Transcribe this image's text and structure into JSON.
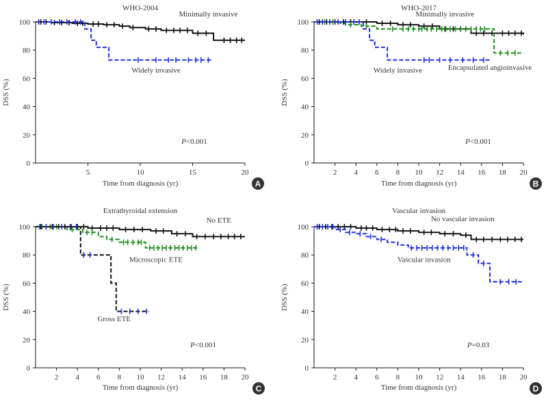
{
  "colors": {
    "black": "#111111",
    "blue": "#1f2fd8",
    "green": "#1e8c1e",
    "badge": "#333333",
    "axis": "#111111"
  },
  "chart_data": [
    {
      "id": "A",
      "type": "line",
      "subtype": "kaplan-meier",
      "title": "WHO-2004",
      "xlabel": "Time from diagnosis (yr)",
      "ylabel": "DSS (%)",
      "xlim": [
        0,
        20
      ],
      "ylim": [
        0,
        100
      ],
      "xticks": [
        5,
        10,
        15,
        20
      ],
      "yticks": [
        0,
        20,
        40,
        60,
        80,
        100
      ],
      "badge": "A",
      "pvalue": {
        "p": "P",
        "rest": "<0.001"
      },
      "series": [
        {
          "name": "Minimally invasive",
          "color": "black",
          "dash": "solid",
          "steps": [
            [
              0,
              100
            ],
            [
              1.5,
              99.5
            ],
            [
              3.5,
              99
            ],
            [
              5,
              98.5
            ],
            [
              6.5,
              98
            ],
            [
              8,
              97
            ],
            [
              9,
              96
            ],
            [
              10.5,
              95
            ],
            [
              12,
              94
            ],
            [
              15,
              92
            ],
            [
              17,
              87
            ],
            [
              20,
              87
            ]
          ],
          "censor": [
            0.5,
            1,
            1.8,
            2.5,
            3.2,
            4,
            4.5,
            5.5,
            6,
            6.8,
            7.5,
            8.3,
            9.3,
            10.8,
            11.5,
            12.5,
            13.2,
            13.8,
            14.5,
            15.5,
            16.3,
            18,
            18.6,
            19.2,
            19.7
          ]
        },
        {
          "name": "Widely invasive",
          "color": "blue",
          "dash": "dashed",
          "steps": [
            [
              0,
              100
            ],
            [
              4.7,
              95
            ],
            [
              5.3,
              87
            ],
            [
              5.8,
              82
            ],
            [
              7,
              73
            ],
            [
              16.8,
              73
            ]
          ],
          "censor": [
            0.3,
            0.8,
            1.5,
            2.3,
            3,
            3.8,
            4.3,
            9.8,
            11.5,
            12.7,
            13.4,
            14.6,
            15.3,
            15.8,
            16.5
          ]
        }
      ],
      "annotations": [
        {
          "text": "Minimally invasive",
          "x": 16.5,
          "y": 104
        },
        {
          "text": "Widely invasive",
          "x": 11.5,
          "y": 64
        }
      ]
    },
    {
      "id": "B",
      "type": "line",
      "subtype": "kaplan-meier",
      "title": "WHO-2017",
      "xlabel": "Time from diagnosis (yr)",
      "ylabel": "DSS (%)",
      "xlim": [
        0,
        20
      ],
      "ylim": [
        0,
        100
      ],
      "xticks": [
        2,
        4,
        6,
        8,
        10,
        12,
        14,
        16,
        18,
        20
      ],
      "yticks": [
        0,
        20,
        40,
        60,
        80,
        100
      ],
      "badge": "B",
      "pvalue": {
        "p": "P",
        "rest": "<0.001"
      },
      "series": [
        {
          "name": "Minimally invasive",
          "color": "black",
          "dash": "solid",
          "steps": [
            [
              0,
              100
            ],
            [
              6,
              99
            ],
            [
              8,
              98
            ],
            [
              10,
              97
            ],
            [
              12,
              95
            ],
            [
              15,
              92
            ],
            [
              20,
              91
            ]
          ],
          "censor": [
            0.5,
            1.2,
            2,
            2.8,
            3.5,
            4.3,
            5,
            6.5,
            7.3,
            8.5,
            9.2,
            10.5,
            11.3,
            12.5,
            13.3,
            14,
            15.5,
            16.2,
            17,
            18,
            18.6,
            19.2,
            19.8
          ]
        },
        {
          "name": "Encapsulated angioinvasive",
          "color": "green",
          "dash": "dashed",
          "steps": [
            [
              0,
              100
            ],
            [
              2.5,
              99
            ],
            [
              3,
              98
            ],
            [
              4.5,
              97
            ],
            [
              6,
              95
            ],
            [
              17.2,
              94
            ],
            [
              17.2,
              78
            ],
            [
              20,
              78
            ]
          ],
          "censor": [
            1,
            1.8,
            3.5,
            5,
            7.5,
            8.5,
            9,
            9.5,
            10,
            10.3,
            10.8,
            11.2,
            11.7,
            12.2,
            12.6,
            13,
            13.5,
            14,
            14.5,
            15,
            15.5,
            15.9,
            16.3,
            17.8,
            18.5,
            19.2
          ]
        },
        {
          "name": "Widely invasive",
          "color": "blue",
          "dash": "dashed",
          "steps": [
            [
              0,
              100
            ],
            [
              4.7,
              95
            ],
            [
              5.3,
              87
            ],
            [
              5.8,
              82
            ],
            [
              7,
              73
            ],
            [
              16.8,
              73
            ]
          ],
          "censor": [
            0.3,
            0.8,
            1.5,
            2.3,
            3,
            3.8,
            4.3,
            10.5,
            11,
            12,
            13,
            14.2,
            15.2,
            16.2
          ]
        }
      ],
      "annotations": [
        {
          "text": "Minimally invasive",
          "x": 12.5,
          "y": 104
        },
        {
          "text": "Widely invasive",
          "x": 8,
          "y": 64
        },
        {
          "text": "Encapsulated angioinvasive",
          "x": 16.8,
          "y": 66
        }
      ]
    },
    {
      "id": "C",
      "type": "line",
      "subtype": "kaplan-meier",
      "title": "Extrathyroidal extension",
      "xlabel": "Time from diagnosis (yr)",
      "ylabel": "DSS (%)",
      "xlim": [
        0,
        20
      ],
      "ylim": [
        0,
        100
      ],
      "xticks": [
        2,
        4,
        6,
        8,
        10,
        12,
        14,
        16,
        18,
        20
      ],
      "yticks": [
        0,
        20,
        40,
        60,
        80,
        100
      ],
      "badge": "C",
      "pvalue": {
        "p": "P",
        "rest": "<0.001"
      },
      "series": [
        {
          "name": "No ETE",
          "color": "black",
          "dash": "solid",
          "steps": [
            [
              0,
              100
            ],
            [
              5,
              99
            ],
            [
              8,
              98
            ],
            [
              11,
              97
            ],
            [
              13,
              95
            ],
            [
              15,
              93
            ],
            [
              20,
              93
            ]
          ],
          "censor": [
            0.5,
            1,
            1.6,
            2.2,
            2.8,
            3.4,
            4,
            4.6,
            5.4,
            6.2,
            6.8,
            7.4,
            8.6,
            9.4,
            10.2,
            11.5,
            12.2,
            13.5,
            14.3,
            15.4,
            16.2,
            17,
            17.7,
            18.4,
            19,
            19.6
          ]
        },
        {
          "name": "Microscopic ETE",
          "color": "green",
          "dash": "dashed",
          "steps": [
            [
              0,
              100
            ],
            [
              3,
              98
            ],
            [
              4.5,
              96
            ],
            [
              6,
              93
            ],
            [
              6.8,
              91
            ],
            [
              8,
              89
            ],
            [
              10.5,
              85
            ],
            [
              15.5,
              85
            ]
          ],
          "censor": [
            0.6,
            1.4,
            2,
            3.5,
            4.9,
            5.4,
            7.3,
            8.4,
            8.8,
            9.3,
            9.8,
            10.1,
            10.9,
            11.3,
            11.7,
            12.1,
            12.5,
            12.9,
            13.3,
            13.7,
            14.1,
            14.5,
            14.9,
            15.3
          ]
        },
        {
          "name": "Gross ETE",
          "color": "black",
          "dash": "dashed",
          "steps": [
            [
              0,
              100
            ],
            [
              4.3,
              80
            ],
            [
              7.2,
              60
            ],
            [
              7.7,
              40
            ],
            [
              10.8,
              40
            ]
          ],
          "censor": []
        },
        {
          "name": "Gross ETE censor",
          "color": "blue",
          "dash": "dashed",
          "steps": [],
          "censor": [
            0.4,
            1,
            1.7,
            2.5,
            3.3,
            3.9,
            4.6,
            5.2,
            8.2,
            9,
            9.8,
            10.6
          ]
        }
      ],
      "annotations": [
        {
          "text": "No ETE",
          "x": 17.5,
          "y": 103
        },
        {
          "text": "Microscopic ETE",
          "x": 11.5,
          "y": 75
        },
        {
          "text": "Gross ETE",
          "x": 7.5,
          "y": 33
        }
      ]
    },
    {
      "id": "D",
      "type": "line",
      "subtype": "kaplan-meier",
      "title": "Vascular invasion",
      "xlabel": "Time from diagnosis (yr)",
      "ylabel": "DSS (%)",
      "xlim": [
        0,
        20
      ],
      "ylim": [
        0,
        100
      ],
      "xticks": [
        2,
        4,
        6,
        8,
        10,
        12,
        14,
        16,
        18,
        20
      ],
      "yticks": [
        0,
        20,
        40,
        60,
        80,
        100
      ],
      "badge": "D",
      "pvalue": {
        "p": "P",
        "rest": "=0.03"
      },
      "series": [
        {
          "name": "No vascular invasion",
          "color": "black",
          "dash": "solid",
          "steps": [
            [
              0,
              100
            ],
            [
              4,
              99
            ],
            [
              6,
              98
            ],
            [
              8,
              97
            ],
            [
              10,
              96
            ],
            [
              12,
              95
            ],
            [
              14,
              94
            ],
            [
              15,
              91
            ],
            [
              20,
              91
            ]
          ],
          "censor": [
            0.5,
            1.1,
            1.7,
            2.3,
            2.9,
            3.5,
            4.5,
            5,
            5.6,
            6.5,
            7.2,
            7.8,
            8.5,
            9.2,
            10.5,
            11.2,
            12.5,
            13.3,
            14.5,
            15.5,
            16.2,
            17,
            17.8,
            18.5,
            19.2,
            19.8
          ]
        },
        {
          "name": "Vascular invasion",
          "color": "blue",
          "dash": "dashed",
          "steps": [
            [
              0,
              100
            ],
            [
              2,
              98
            ],
            [
              3,
              96
            ],
            [
              4,
              95
            ],
            [
              5,
              93
            ],
            [
              6,
              91
            ],
            [
              7,
              89
            ],
            [
              8,
              87
            ],
            [
              9,
              85
            ],
            [
              14.6,
              85
            ],
            [
              14.6,
              80
            ],
            [
              15.7,
              80
            ],
            [
              15.7,
              74
            ],
            [
              16.8,
              74
            ],
            [
              16.8,
              61
            ],
            [
              20,
              61
            ]
          ],
          "censor": [
            0.3,
            0.8,
            1.3,
            1.8,
            2.5,
            3.4,
            4.4,
            5.4,
            6.4,
            9.3,
            9.8,
            10.3,
            10.8,
            11.3,
            11.8,
            12.3,
            12.8,
            13.3,
            13.8,
            14.3,
            15.2,
            16.2,
            17.8,
            18.6,
            19.3
          ]
        }
      ],
      "annotations": [
        {
          "text": "No vascular invasion",
          "x": 14.2,
          "y": 104
        },
        {
          "text": "Vascular invasion",
          "x": 10.5,
          "y": 75
        }
      ]
    }
  ]
}
